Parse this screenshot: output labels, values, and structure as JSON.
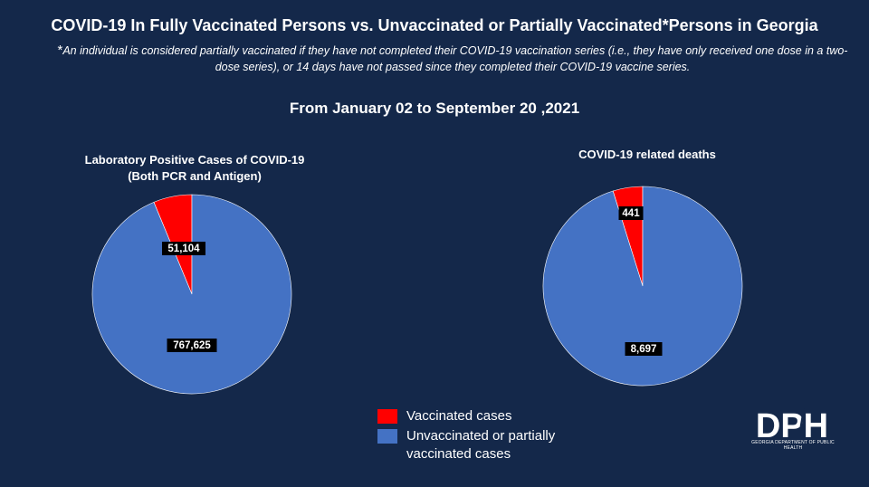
{
  "title": "COVID-19 In Fully Vaccinated Persons vs. Unvaccinated or Partially Vaccinated*Persons in Georgia",
  "footnote": {
    "star": "*",
    "text": "An individual is considered partially vaccinated if they have not completed their COVID-19 vaccination series (i.e., they have only received one dose in a two-dose series), or 14 days have not passed since they completed their COVID-19 vaccine series."
  },
  "date_range": "From January 02 to September 20 ,2021",
  "legend": {
    "items": [
      {
        "label": "Vaccinated cases",
        "color": "#ff0000"
      },
      {
        "label": "Unvaccinated or partially vaccinated cases",
        "color": "#4472c4"
      }
    ]
  },
  "logo": {
    "text": "DPH",
    "subtext": "GEORGIA DEPARTMENT OF PUBLIC HEALTH"
  },
  "chart_data": [
    {
      "type": "pie",
      "title": "Laboratory Positive Cases of COVID-19",
      "subtitle": "(Both PCR and Antigen)",
      "slices": [
        {
          "label": "Vaccinated cases",
          "value": 51104,
          "display": "51,104",
          "color": "#ff0000"
        },
        {
          "label": "Unvaccinated or partially vaccinated cases",
          "value": 767625,
          "display": "767,625",
          "color": "#4472c4"
        }
      ]
    },
    {
      "type": "pie",
      "title": "COVID-19 related deaths",
      "slices": [
        {
          "label": "Vaccinated cases",
          "value": 441,
          "display": "441",
          "color": "#ff0000"
        },
        {
          "label": "Unvaccinated or partially vaccinated cases",
          "value": 8697,
          "display": "8,697",
          "color": "#4472c4"
        }
      ]
    }
  ]
}
